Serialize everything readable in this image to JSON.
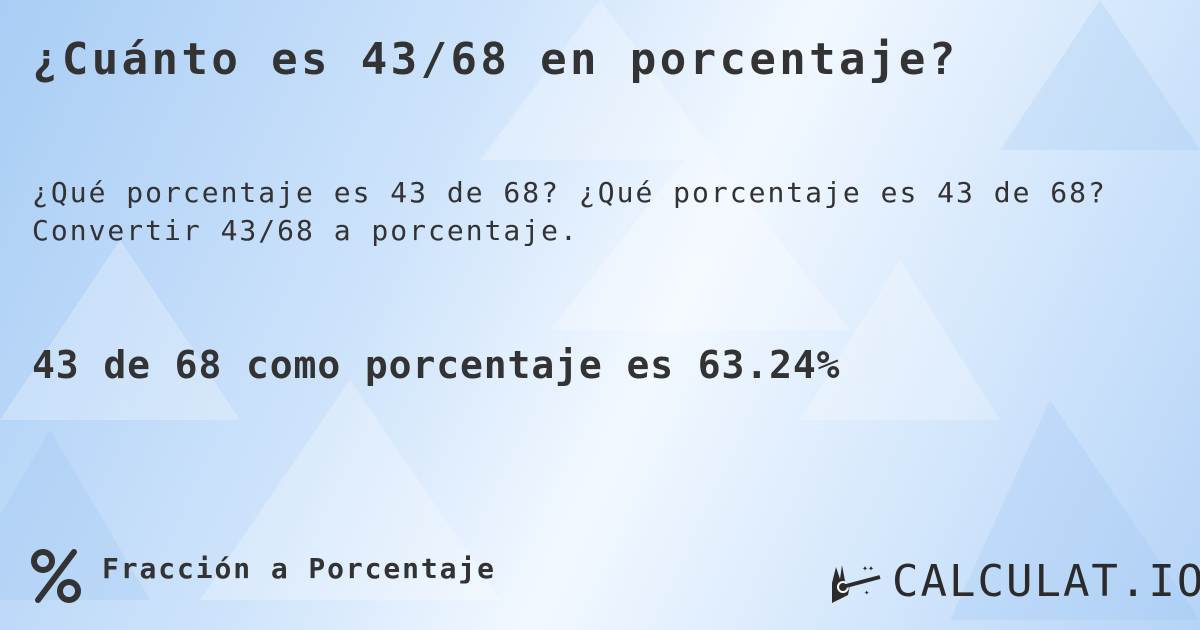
{
  "title": "¿Cuánto es 43/68 en porcentaje?",
  "question_line1": "¿Qué porcentaje es 43 de 68? ¿Qué porcentaje es 43 de 68?",
  "question_line2": "Convertir 43/68 a porcentaje.",
  "result": "43 de 68 como porcentaje es 63.24%",
  "footer": {
    "icon": "percent-icon",
    "label": "Fracción a Porcentaje"
  },
  "logo": {
    "text": "CALCULAT.IO",
    "icon": "magic-hand-icon"
  },
  "colors": {
    "text": "#333333",
    "background": "#cfe4fb"
  }
}
